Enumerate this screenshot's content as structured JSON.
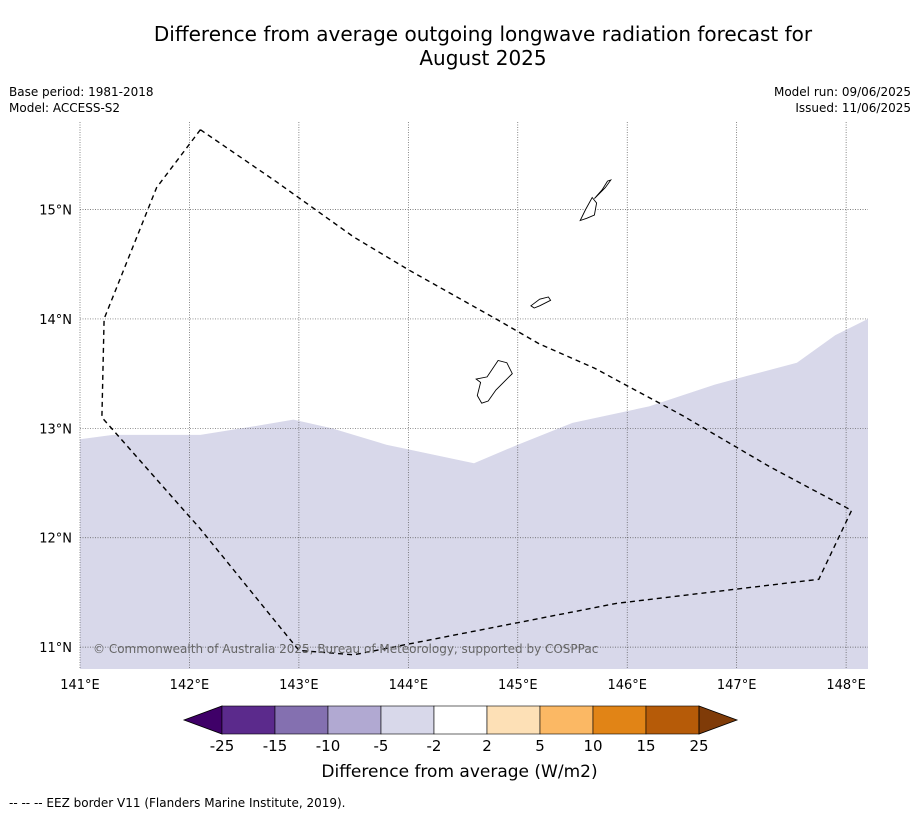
{
  "title_line1": "Difference from average outgoing longwave radiation forecast for",
  "title_line2": "August 2025",
  "meta_left": {
    "base_period": "Base period: 1981-2018",
    "model": "Model: ACCESS-S2"
  },
  "meta_right": {
    "model_run": "Model run: 09/06/2025",
    "issued": "Issued: 11/06/2025"
  },
  "map": {
    "lon_range": [
      141.0,
      148.2
    ],
    "lat_range": [
      10.8,
      15.8
    ],
    "lon_ticks": [
      141,
      142,
      143,
      144,
      145,
      146,
      147,
      148
    ],
    "lat_ticks": [
      11,
      12,
      13,
      14,
      15
    ],
    "lon_tick_labels": [
      "141°E",
      "142°E",
      "143°E",
      "144°E",
      "145°E",
      "146°E",
      "147°E",
      "148°E"
    ],
    "lat_tick_labels": [
      "11°N",
      "12°N",
      "13°N",
      "14°N",
      "15°N"
    ],
    "anomaly_fill_color": "#d8d8ea",
    "anomaly_boundary": [
      [
        141.0,
        12.9
      ],
      [
        141.3,
        12.94
      ],
      [
        142.1,
        12.94
      ],
      [
        142.6,
        13.02
      ],
      [
        142.95,
        13.08
      ],
      [
        143.3,
        13.0
      ],
      [
        143.8,
        12.85
      ],
      [
        144.6,
        12.68
      ],
      [
        145.0,
        12.85
      ],
      [
        145.5,
        13.05
      ],
      [
        146.2,
        13.2
      ],
      [
        146.8,
        13.4
      ],
      [
        147.1,
        13.48
      ],
      [
        147.55,
        13.6
      ],
      [
        147.9,
        13.85
      ],
      [
        148.2,
        14.0
      ]
    ],
    "eez_border": [
      [
        142.1,
        15.73
      ],
      [
        142.8,
        15.25
      ],
      [
        143.5,
        14.75
      ],
      [
        144.0,
        14.45
      ],
      [
        144.8,
        14.0
      ],
      [
        145.2,
        13.77
      ],
      [
        145.7,
        13.55
      ],
      [
        146.5,
        13.12
      ],
      [
        147.3,
        12.65
      ],
      [
        148.05,
        12.25
      ],
      [
        147.75,
        11.62
      ],
      [
        145.9,
        11.4
      ],
      [
        143.5,
        10.93
      ],
      [
        143.0,
        10.97
      ],
      [
        142.1,
        12.08
      ],
      [
        141.2,
        13.1
      ],
      [
        141.22,
        14.0
      ],
      [
        141.7,
        15.2
      ],
      [
        142.1,
        15.73
      ]
    ],
    "copyright": "© Commonwealth of Australia 2025, Bureau of Meteorology, supported by COSPPac"
  },
  "colorbar": {
    "bins": [
      {
        "color": "#3f0068",
        "label": ""
      },
      {
        "color": "#5b2a8c",
        "label": "-25"
      },
      {
        "color": "#8470b0",
        "label": "-15"
      },
      {
        "color": "#b1a9d2",
        "label": "-10"
      },
      {
        "color": "#d8d8ea",
        "label": "-5"
      },
      {
        "color": "#ffffff",
        "label": "-2"
      },
      {
        "color": "#fde0b6",
        "label": "2"
      },
      {
        "color": "#fbb864",
        "label": "5"
      },
      {
        "color": "#e18416",
        "label": "10"
      },
      {
        "color": "#b65b08",
        "label": "15"
      },
      {
        "color": "#7f3b08",
        "label": "25"
      }
    ],
    "label": "Difference from average (W/m2)"
  },
  "footnote": "--  --  -- EEZ border V11 (Flanders Marine Institute, 2019)."
}
